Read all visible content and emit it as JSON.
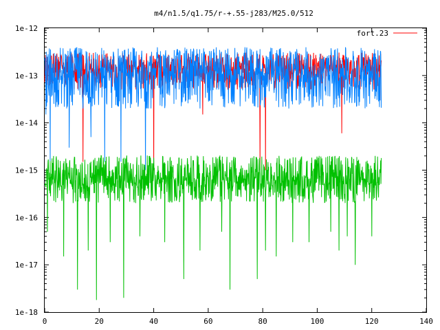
{
  "chart_data": {
    "type": "line",
    "title": "m4/n1.5/q1.75/r-+.55-j283/M25.0/512",
    "xlabel": "",
    "ylabel": "",
    "x_scale": "linear",
    "y_scale": "log",
    "xlim": [
      0,
      140
    ],
    "ylim": [
      1e-18,
      1e-12
    ],
    "x_ticks": [
      0,
      20,
      40,
      60,
      80,
      100,
      120,
      140
    ],
    "x_tick_labels": [
      "0",
      "20",
      "40",
      "60",
      "80",
      "100",
      "120",
      "140"
    ],
    "y_ticks": [
      1e-18,
      1e-17,
      1e-16,
      1e-15,
      1e-14,
      1e-13,
      1e-12
    ],
    "y_tick_labels": [
      "1e-18",
      "1e-17",
      "1e-16",
      "1e-15",
      "1e-14",
      "1e-13",
      "1e-12"
    ],
    "grid": false,
    "legend_position": "top-right",
    "legend": [
      "fort.23"
    ],
    "x_range_of_series": [
      0,
      123.5
    ],
    "series": [
      {
        "name": "fort.23",
        "color": "#ff0000",
        "typical_y": 1.5e-13,
        "band_low": 5e-14,
        "band_high": 3.5e-13,
        "deep_dips": [
          {
            "x": 14,
            "y": 1.5e-15
          },
          {
            "x": 40,
            "y": 1e-15
          },
          {
            "x": 58,
            "y": 1.5e-14
          },
          {
            "x": 79,
            "y": 1e-15
          },
          {
            "x": 81,
            "y": 1e-15
          },
          {
            "x": 109,
            "y": 6e-15
          },
          {
            "x": 123,
            "y": 3e-14
          }
        ]
      },
      {
        "name": "",
        "color": "#0080ff",
        "typical_y": 1.2e-13,
        "band_low": 2e-14,
        "band_high": 5e-13,
        "deep_dips": [
          {
            "x": 0.5,
            "y": 1.5e-14
          },
          {
            "x": 2,
            "y": 1.5e-15
          },
          {
            "x": 9,
            "y": 3e-15
          },
          {
            "x": 17,
            "y": 5e-15
          },
          {
            "x": 22,
            "y": 1.5e-15
          },
          {
            "x": 28,
            "y": 1.5e-15
          },
          {
            "x": 37,
            "y": 1e-15
          }
        ]
      },
      {
        "name": "",
        "color": "#00c000",
        "typical_y": 7e-16,
        "band_low": 2e-16,
        "band_high": 2.5e-15,
        "deep_dips": [
          {
            "x": 1,
            "y": 5e-17
          },
          {
            "x": 7,
            "y": 1.5e-17
          },
          {
            "x": 12,
            "y": 3e-18
          },
          {
            "x": 16,
            "y": 2e-17
          },
          {
            "x": 19,
            "y": 1.8e-18
          },
          {
            "x": 24,
            "y": 3e-17
          },
          {
            "x": 29,
            "y": 2e-18
          },
          {
            "x": 35,
            "y": 4e-17
          },
          {
            "x": 44,
            "y": 3e-17
          },
          {
            "x": 51,
            "y": 5e-18
          },
          {
            "x": 57,
            "y": 2e-17
          },
          {
            "x": 65,
            "y": 5e-17
          },
          {
            "x": 68,
            "y": 3e-18
          },
          {
            "x": 78,
            "y": 5e-18
          },
          {
            "x": 81,
            "y": 2e-17
          },
          {
            "x": 85,
            "y": 1.5e-17
          },
          {
            "x": 91,
            "y": 3e-17
          },
          {
            "x": 97,
            "y": 3e-17
          },
          {
            "x": 105,
            "y": 5e-17
          },
          {
            "x": 108,
            "y": 2e-17
          },
          {
            "x": 111,
            "y": 4e-17
          },
          {
            "x": 114,
            "y": 1e-17
          },
          {
            "x": 120,
            "y": 4e-17
          }
        ]
      }
    ]
  }
}
